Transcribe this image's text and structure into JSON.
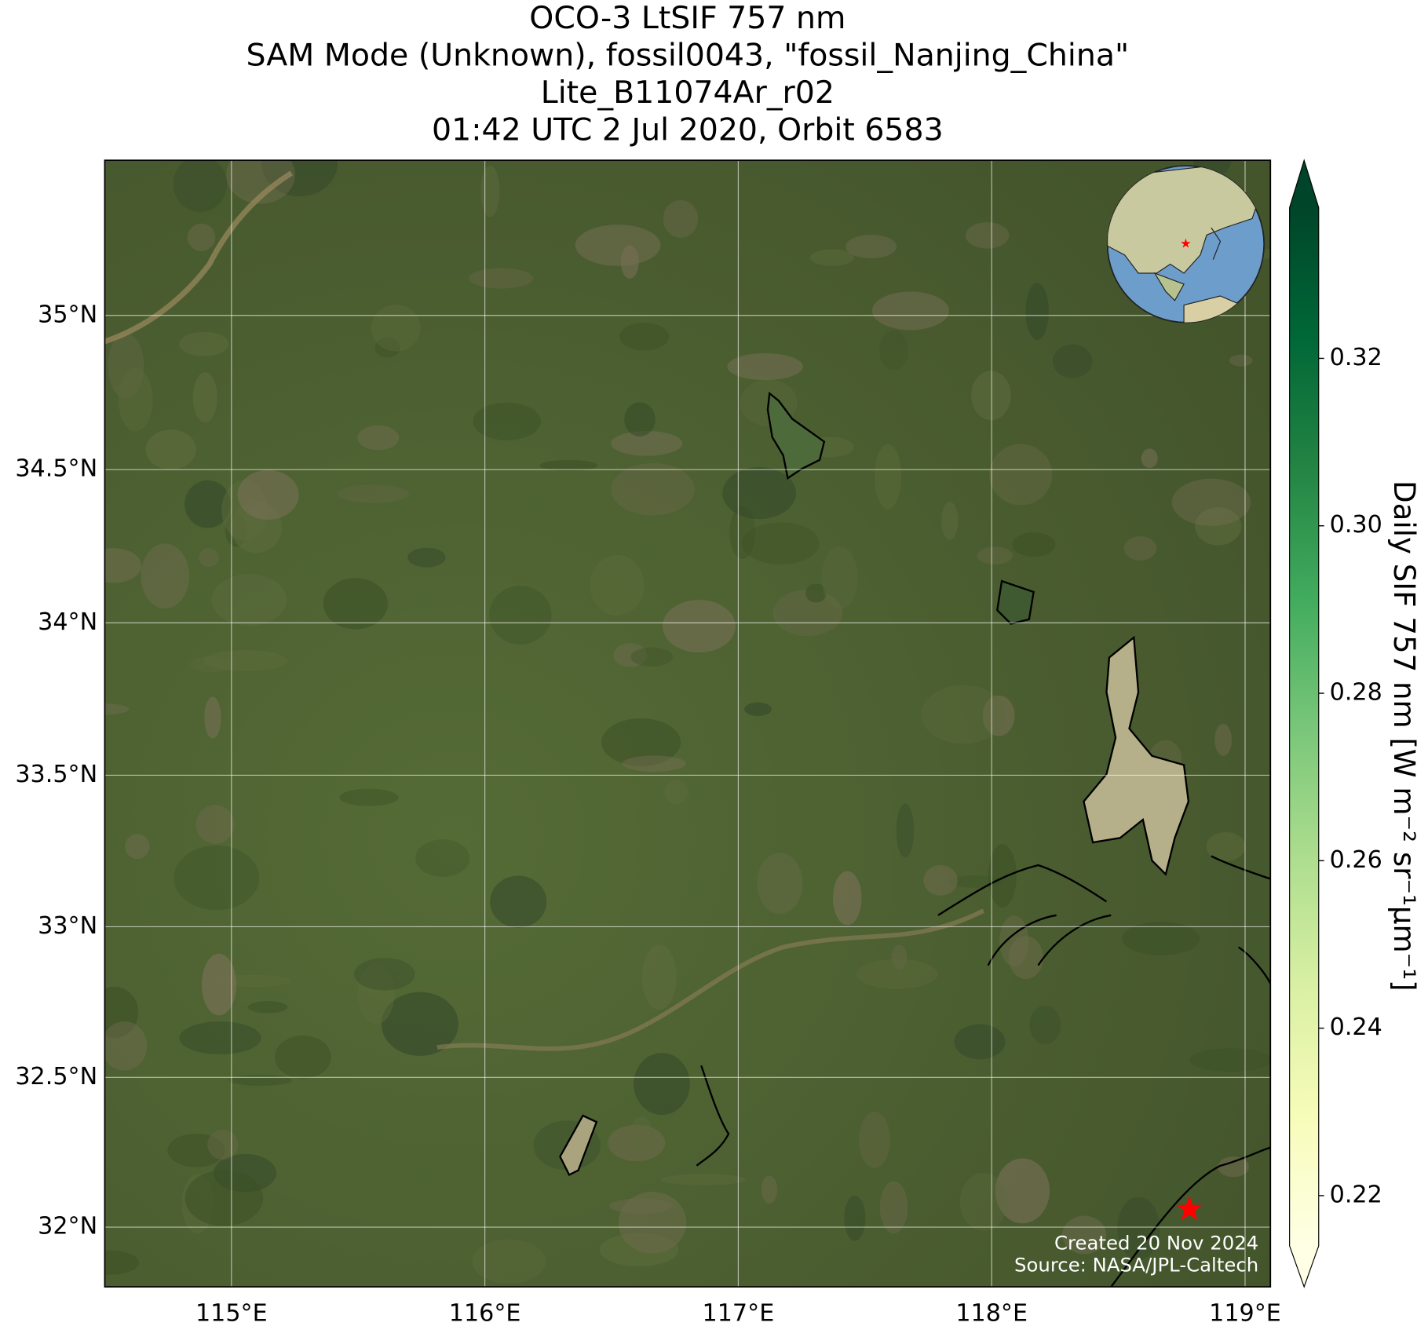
{
  "chart_data": {
    "type": "map",
    "title": [
      "OCO-3 LtSIF 757 nm",
      "SAM Mode (Unknown), fossil0043, \"fossil_Nanjing_China\"",
      "Lite_B11074Ar_r02",
      "01:42 UTC 2 Jul 2020, Orbit 6583"
    ],
    "xlim": [
      114.5,
      119.1
    ],
    "ylim": [
      31.8,
      35.5
    ],
    "xticks": [
      {
        "value": 115,
        "label": "115°E"
      },
      {
        "value": 116,
        "label": "116°E"
      },
      {
        "value": 117,
        "label": "117°E"
      },
      {
        "value": 118,
        "label": "118°E"
      },
      {
        "value": 119,
        "label": "119°E"
      }
    ],
    "yticks": [
      {
        "value": 32,
        "label": "32°N"
      },
      {
        "value": 32.5,
        "label": "32.5°N"
      },
      {
        "value": 33,
        "label": "33°N"
      },
      {
        "value": 33.5,
        "label": "33.5°N"
      },
      {
        "value": 34,
        "label": "34°N"
      },
      {
        "value": 34.5,
        "label": "34.5°N"
      },
      {
        "value": 35,
        "label": "35°N"
      }
    ],
    "grid": true,
    "projection": "mercator",
    "target": {
      "lon": 118.78,
      "lat": 32.06,
      "color": "#ff0000"
    },
    "colorbar": {
      "label": "Daily SIF 757 nm [W m⁻² sr⁻¹μm⁻¹]",
      "clim": [
        0.214,
        0.338
      ],
      "ticks": [
        0.22,
        0.24,
        0.26,
        0.28,
        {
          "value": 0.3,
          "label": "0.30"
        },
        0.32
      ],
      "colormap": [
        "#ffffe5",
        "#f7fcb9",
        "#d9f0a3",
        "#addd8e",
        "#78c679",
        "#41ab5d",
        "#238443",
        "#006837",
        "#004529"
      ],
      "extend": "both"
    },
    "credits": [
      "Created 20 Nov 2024",
      "Source: NASA/JPL-Caltech"
    ]
  }
}
